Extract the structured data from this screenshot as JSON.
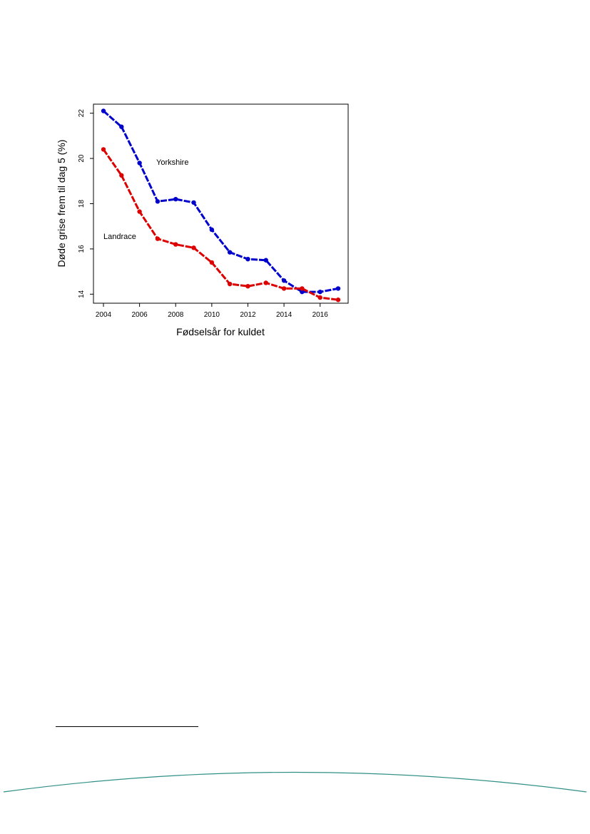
{
  "chart_data": {
    "type": "line",
    "title": "",
    "xlabel": "Fødselsår for kuldet",
    "ylabel": "Døde grise frem til dag 5 (%)",
    "xlim": [
      2004,
      2017
    ],
    "ylim": [
      13.6,
      22.4
    ],
    "x_ticks": [
      2004,
      2006,
      2008,
      2010,
      2012,
      2014,
      2016
    ],
    "y_ticks": [
      14,
      16,
      18,
      20,
      22
    ],
    "grid": false,
    "legend": "none",
    "x": [
      2004,
      2005,
      2006,
      2007,
      2008,
      2009,
      2010,
      2011,
      2012,
      2013,
      2014,
      2015,
      2016,
      2017
    ],
    "series": [
      {
        "name": "Yorkshire",
        "color": "#0000cc",
        "values": [
          22.1,
          21.4,
          19.8,
          18.1,
          18.2,
          18.05,
          16.85,
          15.85,
          15.55,
          15.5,
          14.6,
          14.1,
          14.1,
          14.25
        ]
      },
      {
        "name": "Landrace",
        "color": "#dd0000",
        "values": [
          20.4,
          19.25,
          17.65,
          16.45,
          16.2,
          16.05,
          15.4,
          14.45,
          14.35,
          14.5,
          14.25,
          14.25,
          13.85,
          13.75
        ]
      }
    ]
  },
  "footer": {
    "arc_color": "#2f8f86"
  }
}
